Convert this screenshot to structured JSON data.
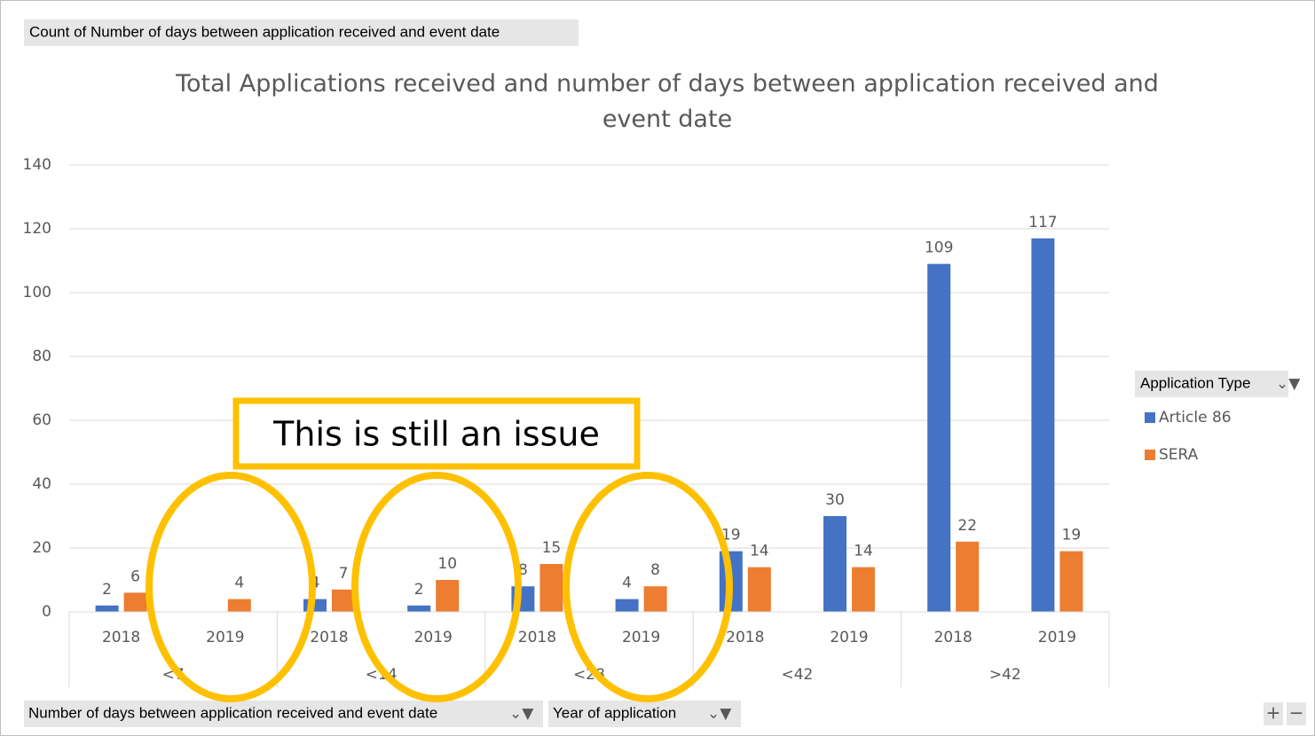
{
  "chart_data": {
    "type": "bar",
    "field_button": "Count of Number of days between application received and event date",
    "title": "Total Applications received and number of days between application received and event date",
    "categories": [
      "2018",
      "2019",
      "2018",
      "2019",
      "2018",
      "2019",
      "2018",
      "2019",
      "2018",
      "2019"
    ],
    "groups": [
      "<7",
      "<14",
      "<28",
      "<42",
      ">42"
    ],
    "series": [
      {
        "name": "Article 86",
        "color": "#4472c4",
        "values": [
          2,
          null,
          4,
          2,
          8,
          4,
          19,
          30,
          109,
          117
        ]
      },
      {
        "name": "SERA",
        "color": "#ed7d31",
        "values": [
          6,
          4,
          7,
          10,
          15,
          8,
          14,
          14,
          22,
          19
        ]
      }
    ],
    "ylim": [
      0,
      140
    ],
    "yticks": [
      0,
      20,
      40,
      60,
      80,
      100,
      120,
      140
    ],
    "grid": true,
    "legend_title": "Application Type",
    "legend_position": "right",
    "axis_buttons": [
      "Number of days between application received and event date",
      "Year of application"
    ],
    "zoom_buttons": [
      "+",
      "−"
    ],
    "annotation": "This is still an issue"
  }
}
